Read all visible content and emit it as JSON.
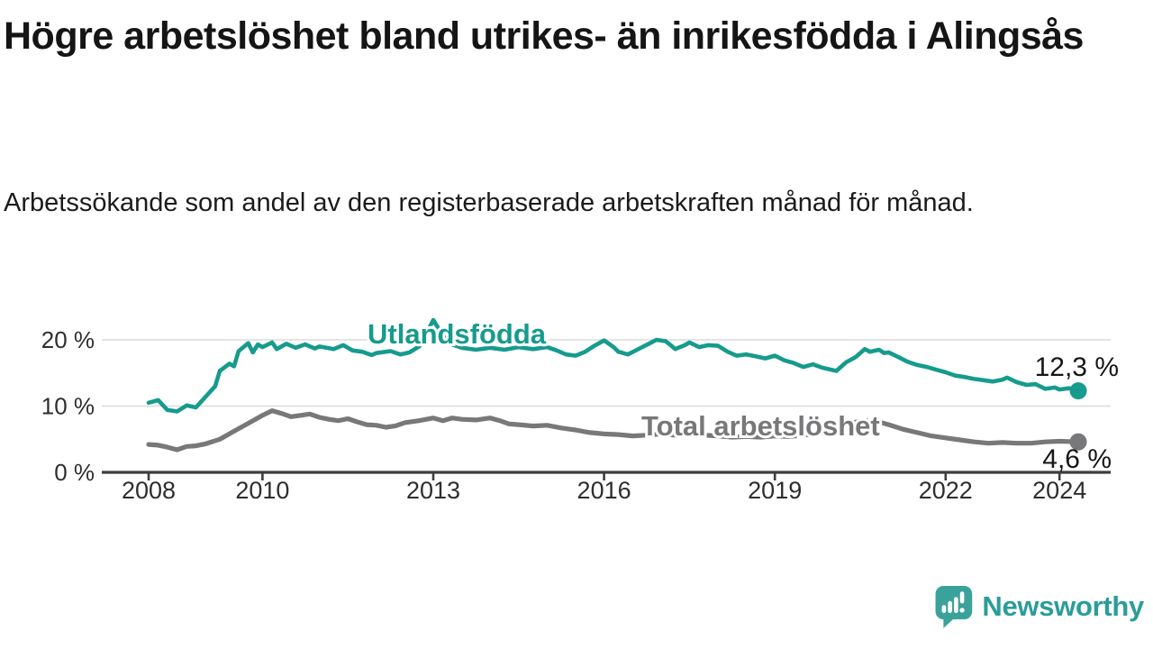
{
  "header": {
    "title": "Högre arbetslöshet bland utrikes- än inrikesfödda i Alingsås",
    "subtitle": "Arbetssökande som andel av den registerbaserade arbetskraften månad för månad."
  },
  "chart_data": {
    "type": "line",
    "title": "Högre arbetslöshet bland utrikes- än inrikesfödda i Alingsås",
    "subtitle": "Arbetssökande som andel av den registerbaserade arbetskraften månad för månad.",
    "x_unit": "decimal_year",
    "xlim": [
      2007.2,
      2024.9
    ],
    "ylim": [
      0,
      24
    ],
    "grid": "horizontal",
    "y_ticks": [
      {
        "value": 0,
        "label": "0 %"
      },
      {
        "value": 10,
        "label": "10 %"
      },
      {
        "value": 20,
        "label": "20 %"
      }
    ],
    "x_ticks": [
      {
        "value": 2008,
        "label": "2008"
      },
      {
        "value": 2010,
        "label": "2010"
      },
      {
        "value": 2013,
        "label": "2013"
      },
      {
        "value": 2016,
        "label": "2016"
      },
      {
        "value": 2019,
        "label": "2019"
      },
      {
        "value": 2022,
        "label": "2022"
      },
      {
        "value": 2024,
        "label": "2024"
      }
    ],
    "series": [
      {
        "name": "Total arbetslöshet",
        "color": "#787779",
        "end_value_label": "4,6 %",
        "end_value": 4.6,
        "points": [
          [
            2008,
            4.2
          ],
          [
            2008.17,
            4.1
          ],
          [
            2008.33,
            3.8
          ],
          [
            2008.5,
            3.4
          ],
          [
            2008.67,
            3.9
          ],
          [
            2008.83,
            4.0
          ],
          [
            2009,
            4.3
          ],
          [
            2009.25,
            5.0
          ],
          [
            2009.5,
            6.2
          ],
          [
            2009.75,
            7.4
          ],
          [
            2009.92,
            8.2
          ],
          [
            2010,
            8.6
          ],
          [
            2010.17,
            9.3
          ],
          [
            2010.33,
            8.9
          ],
          [
            2010.5,
            8.4
          ],
          [
            2010.67,
            8.6
          ],
          [
            2010.83,
            8.8
          ],
          [
            2011,
            8.3
          ],
          [
            2011.17,
            8.0
          ],
          [
            2011.33,
            7.8
          ],
          [
            2011.5,
            8.1
          ],
          [
            2011.67,
            7.6
          ],
          [
            2011.83,
            7.2
          ],
          [
            2012,
            7.1
          ],
          [
            2012.17,
            6.8
          ],
          [
            2012.33,
            7.0
          ],
          [
            2012.5,
            7.5
          ],
          [
            2012.75,
            7.8
          ],
          [
            2013,
            8.2
          ],
          [
            2013.17,
            7.8
          ],
          [
            2013.33,
            8.2
          ],
          [
            2013.5,
            8.0
          ],
          [
            2013.75,
            7.9
          ],
          [
            2014,
            8.2
          ],
          [
            2014.17,
            7.8
          ],
          [
            2014.33,
            7.3
          ],
          [
            2014.5,
            7.2
          ],
          [
            2014.75,
            7.0
          ],
          [
            2015,
            7.1
          ],
          [
            2015.25,
            6.7
          ],
          [
            2015.5,
            6.4
          ],
          [
            2015.75,
            6.0
          ],
          [
            2016,
            5.8
          ],
          [
            2016.25,
            5.7
          ],
          [
            2016.5,
            5.5
          ],
          [
            2016.75,
            5.6
          ],
          [
            2017,
            5.8
          ],
          [
            2017.25,
            5.6
          ],
          [
            2017.5,
            5.7
          ],
          [
            2017.75,
            5.6
          ],
          [
            2018,
            5.5
          ],
          [
            2018.25,
            5.3
          ],
          [
            2018.5,
            5.4
          ],
          [
            2018.75,
            5.3
          ],
          [
            2019,
            5.5
          ],
          [
            2019.25,
            5.4
          ],
          [
            2019.5,
            5.6
          ],
          [
            2019.75,
            5.8
          ],
          [
            2020,
            6.3
          ],
          [
            2020.25,
            7.3
          ],
          [
            2020.5,
            7.7
          ],
          [
            2020.67,
            7.8
          ],
          [
            2020.83,
            7.6
          ],
          [
            2021,
            7.2
          ],
          [
            2021.25,
            6.5
          ],
          [
            2021.5,
            6.0
          ],
          [
            2021.75,
            5.5
          ],
          [
            2022,
            5.2
          ],
          [
            2022.25,
            4.9
          ],
          [
            2022.5,
            4.6
          ],
          [
            2022.75,
            4.4
          ],
          [
            2023,
            4.5
          ],
          [
            2023.25,
            4.4
          ],
          [
            2023.5,
            4.4
          ],
          [
            2023.75,
            4.6
          ],
          [
            2024,
            4.7
          ],
          [
            2024.33,
            4.6
          ]
        ]
      },
      {
        "name": "Utlandsfödda",
        "color": "#169b8d",
        "end_value_label": "12,3 %",
        "end_value": 12.3,
        "points": [
          [
            2008,
            10.5
          ],
          [
            2008.17,
            10.9
          ],
          [
            2008.33,
            9.4
          ],
          [
            2008.5,
            9.2
          ],
          [
            2008.67,
            10.1
          ],
          [
            2008.83,
            9.8
          ],
          [
            2009,
            11.4
          ],
          [
            2009.17,
            13.0
          ],
          [
            2009.25,
            15.3
          ],
          [
            2009.42,
            16.4
          ],
          [
            2009.5,
            16.0
          ],
          [
            2009.58,
            18.3
          ],
          [
            2009.75,
            19.5
          ],
          [
            2009.83,
            18.1
          ],
          [
            2009.92,
            19.3
          ],
          [
            2010,
            18.9
          ],
          [
            2010.17,
            19.6
          ],
          [
            2010.25,
            18.6
          ],
          [
            2010.42,
            19.4
          ],
          [
            2010.58,
            18.8
          ],
          [
            2010.75,
            19.3
          ],
          [
            2010.92,
            18.7
          ],
          [
            2011,
            19.0
          ],
          [
            2011.25,
            18.6
          ],
          [
            2011.42,
            19.2
          ],
          [
            2011.58,
            18.4
          ],
          [
            2011.75,
            18.2
          ],
          [
            2011.92,
            17.7
          ],
          [
            2012,
            18.0
          ],
          [
            2012.25,
            18.3
          ],
          [
            2012.42,
            17.8
          ],
          [
            2012.58,
            18.1
          ],
          [
            2012.75,
            19.0
          ],
          [
            2012.92,
            21.6
          ],
          [
            2013,
            23.0
          ],
          [
            2013.17,
            20.6
          ],
          [
            2013.33,
            19.3
          ],
          [
            2013.5,
            18.8
          ],
          [
            2013.75,
            18.5
          ],
          [
            2014,
            18.8
          ],
          [
            2014.25,
            18.5
          ],
          [
            2014.5,
            18.9
          ],
          [
            2014.75,
            18.6
          ],
          [
            2015,
            18.9
          ],
          [
            2015.17,
            18.4
          ],
          [
            2015.33,
            17.8
          ],
          [
            2015.5,
            17.6
          ],
          [
            2015.67,
            18.2
          ],
          [
            2015.83,
            19.1
          ],
          [
            2016,
            19.9
          ],
          [
            2016.17,
            18.9
          ],
          [
            2016.25,
            18.2
          ],
          [
            2016.42,
            17.8
          ],
          [
            2016.58,
            18.5
          ],
          [
            2016.83,
            19.6
          ],
          [
            2016.92,
            20.0
          ],
          [
            2017.08,
            19.8
          ],
          [
            2017.17,
            19.2
          ],
          [
            2017.25,
            18.6
          ],
          [
            2017.42,
            19.2
          ],
          [
            2017.5,
            19.6
          ],
          [
            2017.67,
            18.9
          ],
          [
            2017.83,
            19.2
          ],
          [
            2018,
            19.1
          ],
          [
            2018.17,
            18.2
          ],
          [
            2018.33,
            17.6
          ],
          [
            2018.5,
            17.8
          ],
          [
            2018.67,
            17.5
          ],
          [
            2018.83,
            17.2
          ],
          [
            2019,
            17.6
          ],
          [
            2019.17,
            16.9
          ],
          [
            2019.33,
            16.5
          ],
          [
            2019.5,
            15.9
          ],
          [
            2019.67,
            16.3
          ],
          [
            2019.83,
            15.8
          ],
          [
            2020.08,
            15.3
          ],
          [
            2020.25,
            16.6
          ],
          [
            2020.42,
            17.4
          ],
          [
            2020.58,
            18.6
          ],
          [
            2020.67,
            18.2
          ],
          [
            2020.83,
            18.5
          ],
          [
            2020.92,
            18.0
          ],
          [
            2021,
            18.1
          ],
          [
            2021.17,
            17.4
          ],
          [
            2021.33,
            16.7
          ],
          [
            2021.5,
            16.2
          ],
          [
            2021.67,
            15.9
          ],
          [
            2021.83,
            15.5
          ],
          [
            2022,
            15.1
          ],
          [
            2022.17,
            14.6
          ],
          [
            2022.33,
            14.4
          ],
          [
            2022.5,
            14.1
          ],
          [
            2022.67,
            13.9
          ],
          [
            2022.83,
            13.7
          ],
          [
            2023,
            14.0
          ],
          [
            2023.08,
            14.3
          ],
          [
            2023.25,
            13.6
          ],
          [
            2023.42,
            13.2
          ],
          [
            2023.58,
            13.3
          ],
          [
            2023.75,
            12.6
          ],
          [
            2023.92,
            12.8
          ],
          [
            2024,
            12.5
          ],
          [
            2024.17,
            12.7
          ],
          [
            2024.33,
            12.3
          ]
        ]
      }
    ],
    "colors": {
      "utlandsfodda": "#169b8d",
      "total": "#787779",
      "axis": "#3d3d3d",
      "gridline": "#dbdbdb",
      "tick_text": "#2e2e2e",
      "value_text": "#161616"
    }
  },
  "branding": {
    "logo_text": "Newsworthy",
    "logo_icon": "newsworthy-speech-bubble-chart-icon",
    "color": "#2a9d99",
    "icon_fill": "#3aa29b"
  }
}
